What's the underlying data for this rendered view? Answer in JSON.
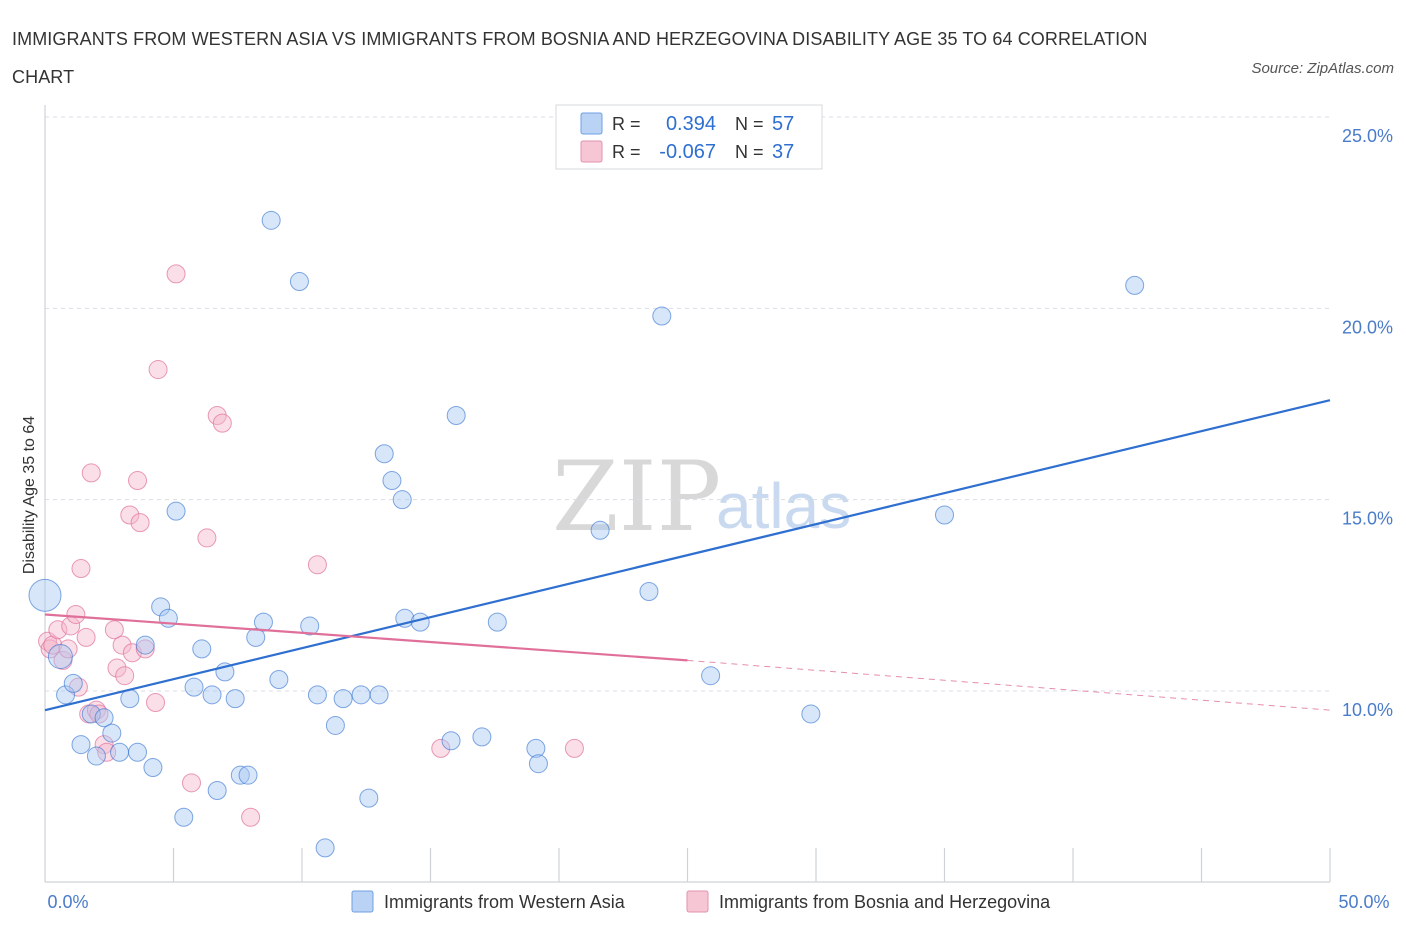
{
  "title": "IMMIGRANTS FROM WESTERN ASIA VS IMMIGRANTS FROM BOSNIA AND HERZEGOVINA DISABILITY AGE 35 TO 64 CORRELATION CHART",
  "source": "Source: ZipAtlas.com",
  "watermark": {
    "zip": "ZIP",
    "atlas": "atlas"
  },
  "colors": {
    "blue": "#2e6fd0",
    "blue_fill": "#a9c8f2",
    "pink": "#e0709a",
    "pink_fill": "#f4b8cb",
    "grid": "#d9dde3",
    "axis_text": "#4a7cc9"
  },
  "legend": {
    "rows": [
      {
        "r_label": "R =",
        "r_value": "0.394",
        "n_label": "N =",
        "n_value": "57"
      },
      {
        "r_label": "R =",
        "r_value": "-0.067",
        "n_label": "N =",
        "n_value": "37"
      }
    ]
  },
  "chart_data": {
    "type": "scatter",
    "xlabel": "",
    "ylabel": "Disability Age 35 to 64",
    "xlim": [
      0,
      50
    ],
    "ylim": [
      5,
      25
    ],
    "x_tick_labels": [
      "0.0%",
      "50.0%"
    ],
    "y_ticks": [
      10,
      15,
      20,
      25
    ],
    "y_tick_labels": [
      "10.0%",
      "15.0%",
      "20.0%",
      "25.0%"
    ],
    "grid": true,
    "series": [
      {
        "name": "Immigrants from Western Asia",
        "color": "blue",
        "points": [
          [
            0.0,
            12.5
          ],
          [
            0.6,
            10.9
          ],
          [
            0.8,
            9.9
          ],
          [
            1.1,
            10.2
          ],
          [
            1.4,
            8.6
          ],
          [
            1.8,
            9.4
          ],
          [
            2.0,
            8.3
          ],
          [
            2.3,
            9.3
          ],
          [
            2.6,
            8.9
          ],
          [
            2.9,
            8.4
          ],
          [
            3.3,
            9.8
          ],
          [
            3.6,
            8.4
          ],
          [
            3.9,
            11.2
          ],
          [
            4.2,
            8.0
          ],
          [
            4.5,
            12.2
          ],
          [
            4.8,
            11.9
          ],
          [
            5.1,
            14.7
          ],
          [
            5.4,
            6.7
          ],
          [
            5.8,
            10.1
          ],
          [
            6.1,
            11.1
          ],
          [
            6.5,
            9.9
          ],
          [
            6.7,
            7.4
          ],
          [
            7.0,
            10.5
          ],
          [
            7.4,
            9.8
          ],
          [
            7.6,
            7.8
          ],
          [
            7.9,
            7.8
          ],
          [
            8.2,
            11.4
          ],
          [
            8.5,
            11.8
          ],
          [
            8.8,
            22.3
          ],
          [
            9.1,
            10.3
          ],
          [
            9.9,
            20.7
          ],
          [
            10.3,
            11.7
          ],
          [
            10.6,
            9.9
          ],
          [
            10.9,
            5.9
          ],
          [
            11.3,
            9.1
          ],
          [
            11.6,
            9.8
          ],
          [
            12.3,
            9.9
          ],
          [
            12.6,
            7.2
          ],
          [
            13.0,
            9.9
          ],
          [
            13.2,
            16.2
          ],
          [
            13.5,
            15.5
          ],
          [
            13.9,
            15.0
          ],
          [
            14.0,
            11.9
          ],
          [
            14.6,
            11.8
          ],
          [
            15.8,
            8.7
          ],
          [
            16.0,
            17.2
          ],
          [
            17.0,
            8.8
          ],
          [
            17.6,
            11.8
          ],
          [
            19.1,
            8.5
          ],
          [
            19.2,
            8.1
          ],
          [
            21.6,
            14.2
          ],
          [
            23.5,
            12.6
          ],
          [
            24.0,
            19.8
          ],
          [
            25.9,
            10.4
          ],
          [
            29.8,
            9.4
          ],
          [
            35.0,
            14.6
          ],
          [
            42.4,
            20.6
          ]
        ],
        "trend": {
          "x": [
            0,
            50
          ],
          "y": [
            9.5,
            17.6
          ],
          "style": "solid"
        }
      },
      {
        "name": "Immigrants from Bosnia and Herzegovina",
        "color": "pink",
        "points": [
          [
            0.1,
            11.3
          ],
          [
            0.2,
            11.1
          ],
          [
            0.3,
            11.2
          ],
          [
            0.5,
            11.6
          ],
          [
            0.7,
            10.8
          ],
          [
            0.9,
            11.1
          ],
          [
            1.0,
            11.7
          ],
          [
            1.2,
            12.0
          ],
          [
            1.3,
            10.1
          ],
          [
            1.4,
            13.2
          ],
          [
            1.6,
            11.4
          ],
          [
            1.7,
            9.4
          ],
          [
            1.8,
            15.7
          ],
          [
            2.0,
            9.5
          ],
          [
            2.1,
            9.4
          ],
          [
            2.3,
            8.6
          ],
          [
            2.4,
            8.4
          ],
          [
            2.7,
            11.6
          ],
          [
            2.8,
            10.6
          ],
          [
            3.0,
            11.2
          ],
          [
            3.1,
            10.4
          ],
          [
            3.3,
            14.6
          ],
          [
            3.4,
            11.0
          ],
          [
            3.6,
            15.5
          ],
          [
            3.7,
            14.4
          ],
          [
            3.9,
            11.1
          ],
          [
            4.3,
            9.7
          ],
          [
            4.4,
            18.4
          ],
          [
            5.1,
            20.9
          ],
          [
            5.7,
            7.6
          ],
          [
            6.3,
            14.0
          ],
          [
            6.7,
            17.2
          ],
          [
            6.9,
            17.0
          ],
          [
            8.0,
            6.7
          ],
          [
            10.6,
            13.3
          ],
          [
            15.4,
            8.5
          ],
          [
            20.6,
            8.5
          ]
        ],
        "trend": {
          "x": [
            0,
            25
          ],
          "y": [
            12.0,
            10.8
          ],
          "style": "solid"
        },
        "trend_extension": {
          "x": [
            25,
            50
          ],
          "y": [
            10.8,
            9.5
          ],
          "style": "dashed"
        }
      }
    ]
  },
  "bottom_legend": {
    "items": [
      {
        "label": "Immigrants from Western Asia",
        "color": "blue"
      },
      {
        "label": "Immigrants from Bosnia and Herzegovina",
        "color": "pink"
      }
    ]
  }
}
